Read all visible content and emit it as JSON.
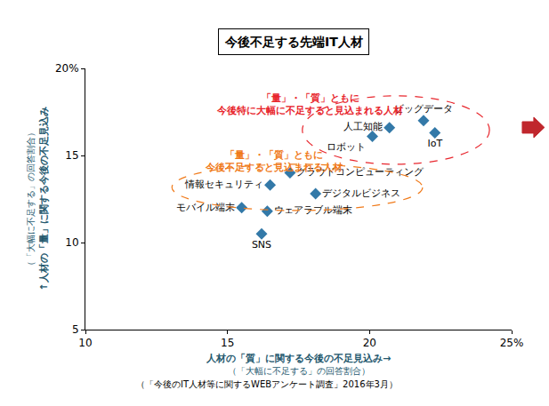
{
  "chart_data": {
    "type": "scatter",
    "title": "今後不足する先端IT人材",
    "x_label": "人材の「質」に関する今後の不足見込み→",
    "x_label_note": "（「大幅に不足する」の回答割合）",
    "y_label": "↑人材の「量」に関する今後の不足見込み",
    "y_label_note": "（「大幅に不足する」の回答割合）",
    "source": "（「今後のIT人材等に関するWEBアンケート調査」2016年3月）",
    "labels": [
      "ビッグデータ",
      "人工知能",
      "ロボット",
      "IoT",
      "クラウドコンピューティング",
      "情報セキュリティ",
      "デジタルビジネス",
      "モバイル端末",
      "ウェアラブル端末",
      "SNS"
    ],
    "x": [
      21.9,
      20.7,
      20.1,
      22.3,
      17.2,
      16.5,
      18.1,
      15.5,
      16.4,
      16.2
    ],
    "values": [
      17.0,
      16.6,
      16.1,
      16.3,
      14.0,
      13.3,
      12.8,
      12.0,
      11.8,
      10.5
    ],
    "color": "#3379a8",
    "marker": "diamond",
    "xlim": [
      10,
      25
    ],
    "xticks": [
      10,
      15,
      20,
      {
        "value": 25,
        "label": "25%"
      }
    ],
    "ylim": [
      5,
      20
    ],
    "yticks": [
      5,
      10,
      15,
      {
        "value": 20,
        "label": "20%"
      }
    ],
    "grid": false,
    "annotations": [
      {
        "text": "「量」・「質」ともに\n今後特に大幅に不足すると見込まれる人材",
        "color": "#e8262d"
      },
      {
        "text": "「量」・「質」ともに\n今後不足すると見込まれる人材",
        "color": "#f07a1a"
      }
    ]
  }
}
